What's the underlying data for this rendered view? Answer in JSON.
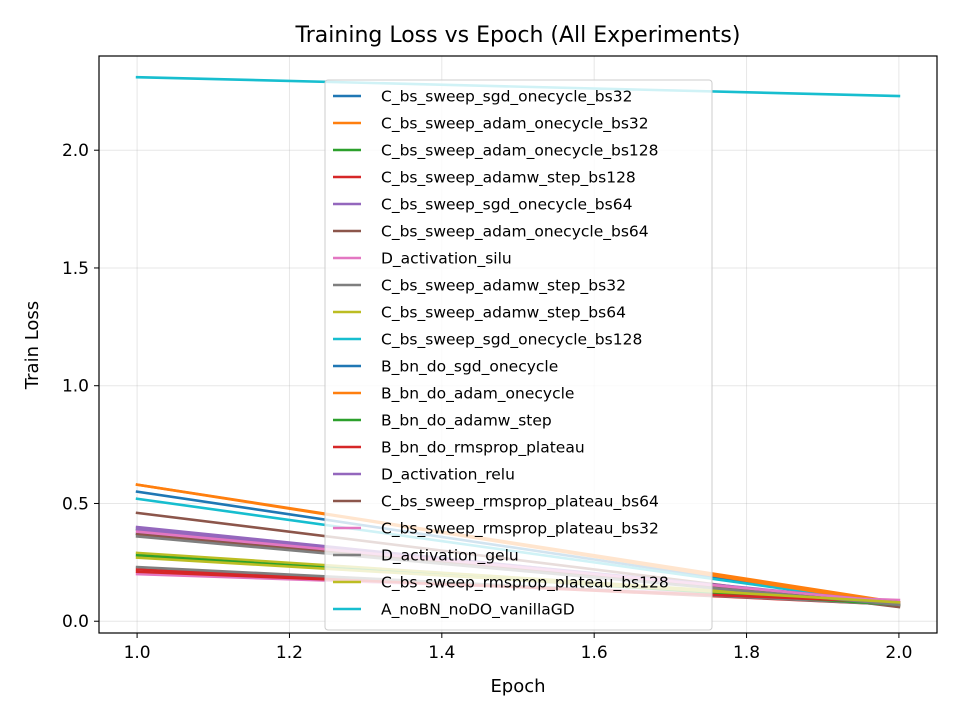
{
  "chart_data": {
    "type": "line",
    "title": "Training Loss vs Epoch (All Experiments)",
    "xlabel": "Epoch",
    "ylabel": "Train Loss",
    "x": [
      1.0,
      2.0
    ],
    "xlim": [
      0.95,
      2.05
    ],
    "ylim": [
      -0.05,
      2.4
    ],
    "xticks": [
      "1.0",
      "1.2",
      "1.4",
      "1.6",
      "1.8",
      "2.0"
    ],
    "yticks": [
      "0.0",
      "0.5",
      "1.0",
      "1.5",
      "2.0"
    ],
    "grid": true,
    "legend_position": "center-top",
    "series": [
      {
        "name": "C_bs_sweep_sgd_onecycle_bs32",
        "color": "#1f77b4",
        "values": [
          0.55,
          0.07
        ]
      },
      {
        "name": "C_bs_sweep_adam_onecycle_bs32",
        "color": "#ff7f0e",
        "values": [
          0.58,
          0.08
        ]
      },
      {
        "name": "C_bs_sweep_adam_onecycle_bs128",
        "color": "#2ca02c",
        "values": [
          0.39,
          0.07
        ]
      },
      {
        "name": "C_bs_sweep_adamw_step_bs128",
        "color": "#d62728",
        "values": [
          0.22,
          0.07
        ]
      },
      {
        "name": "C_bs_sweep_sgd_onecycle_bs64",
        "color": "#9467bd",
        "values": [
          0.4,
          0.07
        ]
      },
      {
        "name": "C_bs_sweep_adam_onecycle_bs64",
        "color": "#8c564b",
        "values": [
          0.46,
          0.06
        ]
      },
      {
        "name": "D_activation_silu",
        "color": "#e377c2",
        "values": [
          0.2,
          0.09
        ]
      },
      {
        "name": "C_bs_sweep_adamw_step_bs32",
        "color": "#7f7f7f",
        "values": [
          0.23,
          0.07
        ]
      },
      {
        "name": "C_bs_sweep_adamw_step_bs64",
        "color": "#bcbd22",
        "values": [
          0.29,
          0.08
        ]
      },
      {
        "name": "C_bs_sweep_sgd_onecycle_bs128",
        "color": "#17becf",
        "values": [
          0.52,
          0.07
        ]
      },
      {
        "name": "B_bn_do_sgd_onecycle",
        "color": "#1f77b4",
        "values": [
          0.37,
          0.07
        ]
      },
      {
        "name": "B_bn_do_adam_onecycle",
        "color": "#ff7f0e",
        "values": [
          0.58,
          0.07
        ]
      },
      {
        "name": "B_bn_do_adamw_step",
        "color": "#2ca02c",
        "values": [
          0.28,
          0.07
        ]
      },
      {
        "name": "B_bn_do_rmsprop_plateau",
        "color": "#d62728",
        "values": [
          0.21,
          0.08
        ]
      },
      {
        "name": "D_activation_relu",
        "color": "#9467bd",
        "values": [
          0.39,
          0.08
        ]
      },
      {
        "name": "C_bs_sweep_rmsprop_plateau_bs64",
        "color": "#8c564b",
        "values": [
          0.37,
          0.07
        ]
      },
      {
        "name": "C_bs_sweep_rmsprop_plateau_bs32",
        "color": "#e377c2",
        "values": [
          0.38,
          0.08
        ]
      },
      {
        "name": "D_activation_gelu",
        "color": "#7f7f7f",
        "values": [
          0.36,
          0.07
        ]
      },
      {
        "name": "C_bs_sweep_rmsprop_plateau_bs128",
        "color": "#bcbd22",
        "values": [
          0.27,
          0.08
        ]
      },
      {
        "name": "A_noBN_noDO_vanillaGD",
        "color": "#17becf",
        "values": [
          2.31,
          2.23
        ]
      }
    ]
  }
}
